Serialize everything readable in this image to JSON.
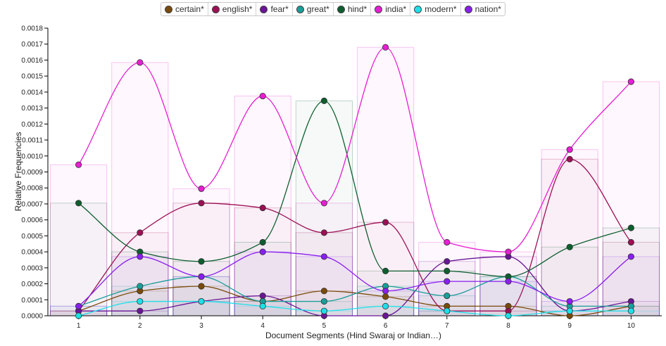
{
  "chart_data": {
    "type": "line",
    "xlabel": "Document Segments (Hind Swaraj or Indian…)",
    "ylabel": "Relative Frequencies",
    "categories": [
      "1",
      "2",
      "3",
      "4",
      "5",
      "6",
      "7",
      "8",
      "9",
      "10"
    ],
    "y_ticks": [
      "0.0000",
      "0.0001",
      "0.0002",
      "0.0003",
      "0.0004",
      "0.0005",
      "0.0006",
      "0.0007",
      "0.0008",
      "0.0009",
      "0.0010",
      "0.0011",
      "0.0012",
      "0.0013",
      "0.0014",
      "0.0015",
      "0.0016",
      "0.0017",
      "0.0018"
    ],
    "ylim": [
      0,
      0.0018
    ],
    "series": [
      {
        "name": "certain*",
        "color": "#7a4a0a",
        "values": [
          3e-05,
          0.000155,
          0.000185,
          9e-05,
          0.000155,
          0.00012,
          6e-05,
          6e-05,
          0.0,
          6e-05
        ]
      },
      {
        "name": "english*",
        "color": "#9c1055",
        "values": [
          3e-05,
          0.00052,
          0.000705,
          0.000675,
          0.00052,
          0.000585,
          3e-05,
          3e-05,
          0.00098,
          0.00046
        ]
      },
      {
        "name": "fear*",
        "color": "#6a1596",
        "values": [
          3e-05,
          3e-05,
          9e-05,
          0.000125,
          0.0,
          0.0,
          0.00034,
          0.00037,
          3e-05,
          9e-05
        ]
      },
      {
        "name": "great*",
        "color": "#1a9e9a",
        "values": [
          6e-05,
          0.000185,
          0.000245,
          9e-05,
          9e-05,
          0.000185,
          0.000125,
          0.000245,
          6e-05,
          6e-05
        ]
      },
      {
        "name": "hind*",
        "color": "#0d5e2e",
        "values": [
          0.000705,
          0.0004,
          0.00034,
          0.00046,
          0.001345,
          0.00028,
          0.00028,
          0.000245,
          0.00043,
          0.00055
        ]
      },
      {
        "name": "india*",
        "color": "#e61ed2",
        "values": [
          0.000945,
          0.001585,
          0.000795,
          0.001375,
          0.000705,
          0.00168,
          0.00046,
          0.0004,
          0.00104,
          0.001465
        ]
      },
      {
        "name": "modern*",
        "color": "#1ee0e8",
        "values": [
          0.0,
          9e-05,
          9e-05,
          6e-05,
          3e-05,
          6e-05,
          3e-05,
          0.0,
          3e-05,
          3e-05
        ]
      },
      {
        "name": "nation*",
        "color": "#8a1ef0",
        "values": [
          6e-05,
          0.00037,
          0.000245,
          0.0004,
          0.00037,
          0.000155,
          0.000215,
          0.000215,
          9e-05,
          0.00037
        ]
      }
    ]
  }
}
